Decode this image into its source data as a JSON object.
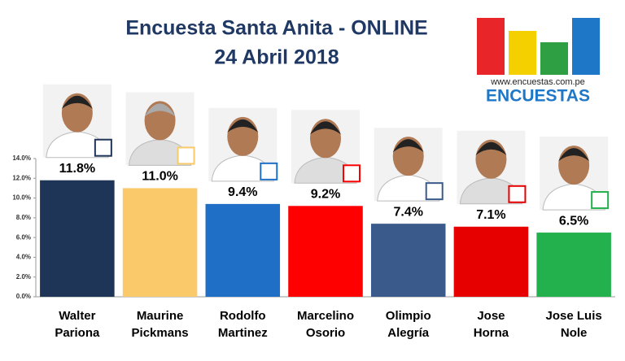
{
  "chart_data": {
    "type": "bar",
    "title": "Encuesta Santa Anita - ONLINE",
    "subtitle": "24 Abril 2018",
    "categories": [
      [
        "Walter",
        "Pariona"
      ],
      [
        "Maurine",
        "Pickmans"
      ],
      [
        "Rodolfo",
        "Martinez"
      ],
      [
        "Marcelino",
        "Osorio"
      ],
      [
        "Olimpio",
        "Alegría"
      ],
      [
        "Jose",
        "Horna"
      ],
      [
        "Jose Luis",
        "Nole"
      ]
    ],
    "values": [
      11.8,
      11.0,
      9.4,
      9.2,
      7.4,
      7.1,
      6.5
    ],
    "value_labels": [
      "11.8%",
      "11.0%",
      "9.4%",
      "9.2%",
      "7.4%",
      "7.1%",
      "6.5%"
    ],
    "colors": [
      "#1f3557",
      "#f9c96a",
      "#1f6fc6",
      "#ff0000",
      "#3a5a8c",
      "#e60000",
      "#22b14c"
    ],
    "ylim": [
      0,
      14
    ],
    "yticks": [
      {
        "value": 0,
        "label": "0.0%"
      },
      {
        "value": 2,
        "label": "2.0%"
      },
      {
        "value": 4,
        "label": "4.0%"
      },
      {
        "value": 6,
        "label": "6.0%"
      },
      {
        "value": 8,
        "label": "8.0%"
      },
      {
        "value": 10,
        "label": "10.0%"
      },
      {
        "value": 12,
        "label": "12.0%"
      },
      {
        "value": 14,
        "label": "14.0%"
      }
    ]
  },
  "logo": {
    "url": "www.encuestas.com.pe",
    "name": "ENCUESTAS"
  }
}
